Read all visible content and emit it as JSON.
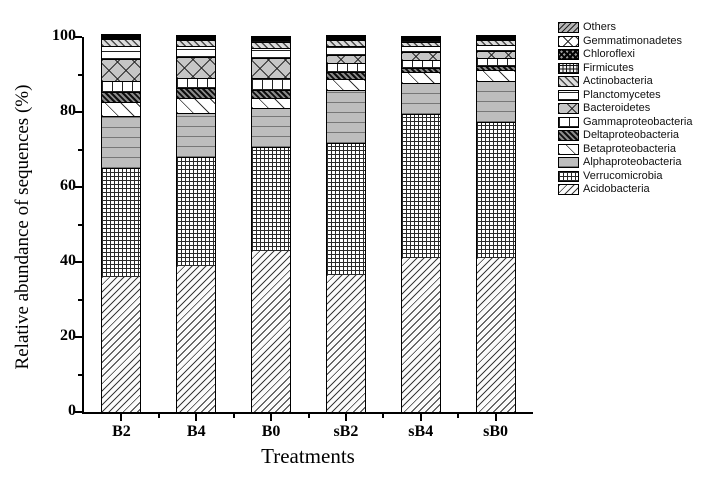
{
  "figure": {
    "xlabel": "Treatments",
    "ylabel": "Relative abundance of sequences (%)"
  },
  "chart_data": {
    "type": "bar",
    "stacked": true,
    "title": "",
    "xlabel": "Treatments",
    "ylabel": "Relative abundance of sequences (%)",
    "ylim": [
      0,
      100
    ],
    "yticks_major": [
      0,
      20,
      40,
      60,
      80,
      100
    ],
    "yticks_minor": [
      10,
      30,
      50,
      70,
      90
    ],
    "grid": false,
    "legend_position": "outside-top-right",
    "categories": [
      "B2",
      "B4",
      "B0",
      "sB2",
      "sB4",
      "sB0"
    ],
    "series": [
      {
        "name": "Acidobacteria",
        "pattern": "acido",
        "values": [
          36.0,
          39.0,
          43.0,
          36.5,
          41.0,
          41.0
        ]
      },
      {
        "name": "Verrucomicrobia",
        "pattern": "verruco",
        "values": [
          29.0,
          29.0,
          27.8,
          35.3,
          38.6,
          36.4
        ]
      },
      {
        "name": "Alphaproteobacteria",
        "pattern": "alpha",
        "values": [
          14.0,
          11.8,
          10.4,
          14.2,
          8.2,
          10.9
        ]
      },
      {
        "name": "Betaproteobacteria",
        "pattern": "beta",
        "values": [
          3.8,
          4.0,
          2.6,
          2.9,
          2.9,
          2.9
        ]
      },
      {
        "name": "Deltaproteobacteria",
        "pattern": "delta",
        "values": [
          2.6,
          2.5,
          2.1,
          1.9,
          1.1,
          1.1
        ]
      },
      {
        "name": "Gammaproteobacteria",
        "pattern": "gamma",
        "values": [
          2.9,
          2.9,
          3.3,
          2.4,
          2.2,
          2.1
        ]
      },
      {
        "name": "Bacteroidetes",
        "pattern": "bact",
        "values": [
          5.8,
          5.6,
          5.3,
          2.1,
          2.1,
          1.9
        ]
      },
      {
        "name": "Planctomycetes",
        "pattern": "plancto",
        "values": [
          3.5,
          2.8,
          2.7,
          2.2,
          1.6,
          1.6
        ]
      },
      {
        "name": "Actinobacteria",
        "pattern": "actino",
        "values": [
          1.8,
          1.6,
          1.6,
          1.6,
          1.1,
          1.2
        ]
      },
      {
        "name": "Firmicutes",
        "pattern": "firm",
        "values": [
          0.2,
          0.2,
          0.4,
          0.3,
          0.4,
          0.3
        ]
      },
      {
        "name": "Chloroflexi",
        "pattern": "chloro",
        "values": [
          0.2,
          0.2,
          0.4,
          0.3,
          0.4,
          0.3
        ]
      },
      {
        "name": "Gemmatimonadetes",
        "pattern": "gemma",
        "values": [
          0.1,
          0.2,
          0.2,
          0.2,
          0.2,
          0.2
        ]
      },
      {
        "name": "Others",
        "pattern": "others",
        "values": [
          0.1,
          0.2,
          0.2,
          0.1,
          0.2,
          0.1
        ]
      }
    ]
  }
}
